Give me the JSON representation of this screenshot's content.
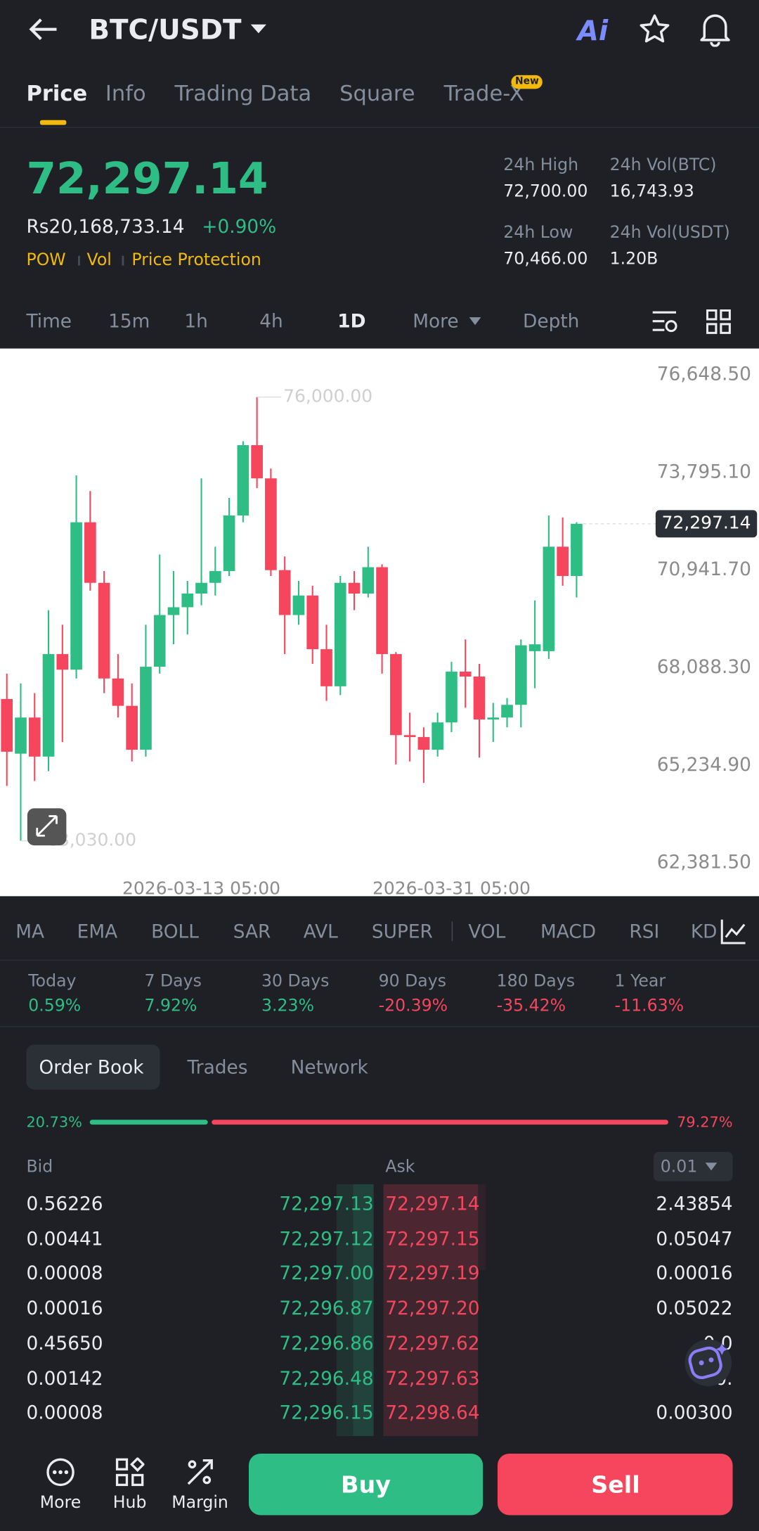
{
  "header": {
    "pair": "BTC/USDT",
    "ai": "Ai"
  },
  "tabs": [
    "Price",
    "Info",
    "Trading Data",
    "Square",
    "Trade-X"
  ],
  "tab_badge": "New",
  "price": {
    "last": "72,297.14",
    "fiat": "Rs20,168,733.14",
    "change": "+0.90%",
    "tags": [
      "POW",
      "Vol",
      "Price Protection"
    ],
    "stats": [
      {
        "label": "24h High",
        "value": "72,700.00"
      },
      {
        "label": "24h Vol(BTC)",
        "value": "16,743.93"
      },
      {
        "label": "24h Low",
        "value": "70,466.00"
      },
      {
        "label": "24h Vol(USDT)",
        "value": "1.20B"
      }
    ]
  },
  "intervals": [
    "Time",
    "15m",
    "1h",
    "4h",
    "1D",
    "More",
    "Depth"
  ],
  "chart_data": {
    "type": "candlestick",
    "up_color": "#2ebd85",
    "down_color": "#f6465d",
    "categories": [
      null,
      null,
      null,
      null,
      null,
      null,
      null,
      null,
      null,
      null,
      null,
      null,
      null,
      null,
      "2026-03-13 05:00",
      null,
      null,
      null,
      null,
      null,
      null,
      null,
      null,
      null,
      null,
      null,
      null,
      null,
      null,
      null,
      null,
      null,
      "2026-03-31 05:00",
      null,
      null,
      null,
      null,
      null,
      null,
      null,
      null,
      null
    ],
    "open": [
      67176,
      65578,
      66634,
      65492,
      68488,
      68032,
      72340,
      70571,
      67775,
      66976,
      65692,
      68118,
      69630,
      69858,
      70257,
      70571,
      70914,
      72540,
      74594,
      73624,
      70942,
      69630,
      70200,
      68631,
      67547,
      70571,
      70257,
      71028,
      68488,
      66120,
      66063,
      65692,
      66491,
      67975,
      67832,
      66576,
      66634,
      67005,
      68574,
      68574,
      71627,
      70771
    ],
    "high": [
      67918,
      67632,
      67347,
      69772,
      69344,
      73710,
      73253,
      70914,
      68488,
      67632,
      69344,
      71399,
      70914,
      70628,
      73624,
      71627,
      73054,
      74709,
      76000,
      73910,
      71342,
      70628,
      70486,
      69344,
      70771,
      70914,
      71627,
      71113,
      68545,
      66776,
      66348,
      66776,
      68260,
      68916,
      68203,
      67062,
      67204,
      68916,
      70058,
      72540,
      72483,
      72340
    ],
    "low": [
      64636,
      63030,
      64779,
      65064,
      65920,
      67775,
      70343,
      67347,
      66634,
      65349,
      65492,
      67918,
      68774,
      69059,
      69915,
      70200,
      70771,
      72340,
      73339,
      70771,
      68488,
      69344,
      68203,
      67119,
      67290,
      69772,
      70143,
      67918,
      65264,
      65349,
      64722,
      65492,
      66205,
      66919,
      65464,
      65920,
      66348,
      66348,
      67490,
      68346,
      70486,
      70143
    ],
    "close": [
      65635,
      66634,
      65492,
      68488,
      68032,
      72340,
      70571,
      67775,
      66976,
      65692,
      68118,
      69630,
      69858,
      70257,
      70571,
      70914,
      72540,
      74594,
      73624,
      70942,
      69630,
      70200,
      68631,
      67547,
      70571,
      70257,
      71028,
      68488,
      66120,
      66063,
      65692,
      66491,
      67975,
      67832,
      66576,
      66634,
      67005,
      68745,
      68774,
      71627,
      70771,
      72297.14
    ],
    "ylim": [
      61412,
      77419
    ],
    "yticks": [
      {
        "value": 76648.5,
        "label": "76,648.50"
      },
      {
        "value": 73795.1,
        "label": "73,795.10"
      },
      {
        "value": 70941.7,
        "label": "70,941.70"
      },
      {
        "value": 68088.3,
        "label": "68,088.30"
      },
      {
        "value": 65234.9,
        "label": "65,234.90"
      },
      {
        "value": 62381.5,
        "label": "62,381.50"
      }
    ],
    "annotations": [
      {
        "value": 76000,
        "label": "76,000.00"
      },
      {
        "value": 63030,
        "label": "63,030.00"
      }
    ],
    "last_price": {
      "value": 72297.14,
      "label": "72,297.14"
    }
  },
  "indicators": [
    "MA",
    "EMA",
    "BOLL",
    "SAR",
    "AVL",
    "SUPER",
    "VOL",
    "MACD",
    "RSI",
    "KD"
  ],
  "performance": [
    {
      "label": "Today",
      "value": "0.59%"
    },
    {
      "label": "7 Days",
      "value": "7.92%"
    },
    {
      "label": "30 Days",
      "value": "3.23%"
    },
    {
      "label": "90 Days",
      "value": "-20.39%"
    },
    {
      "label": "180 Days",
      "value": "-35.42%"
    },
    {
      "label": "1 Year",
      "value": "-11.63%"
    }
  ],
  "order_book": {
    "tabs": [
      "Order Book",
      "Trades",
      "Network"
    ],
    "bid_ratio": {
      "value": 20.73,
      "label": "20.73%"
    },
    "ask_ratio": {
      "value": 79.27,
      "label": "79.27%"
    },
    "bid_header": "Bid",
    "ask_header": "Ask",
    "precision": "0.01",
    "rows": [
      [
        "0.56226",
        "72,297.13",
        "72,297.14",
        "2.43854"
      ],
      [
        "0.00441",
        "72,297.12",
        "72,297.15",
        "0.05047"
      ],
      [
        "0.00008",
        "72,297.00",
        "72,297.19",
        "0.00016"
      ],
      [
        "0.00016",
        "72,296.87",
        "72,297.20",
        "0.05022"
      ],
      [
        "0.45650",
        "72,296.86",
        "72,297.62",
        "0.0"
      ],
      [
        "0.00142",
        "72,296.48",
        "72,297.63",
        "0."
      ],
      [
        "0.00008",
        "72,296.15",
        "72,298.64",
        "0.00300"
      ]
    ]
  },
  "bottom_nav": [
    "More",
    "Hub",
    "Margin"
  ],
  "buy": "Buy",
  "sell": "Sell"
}
